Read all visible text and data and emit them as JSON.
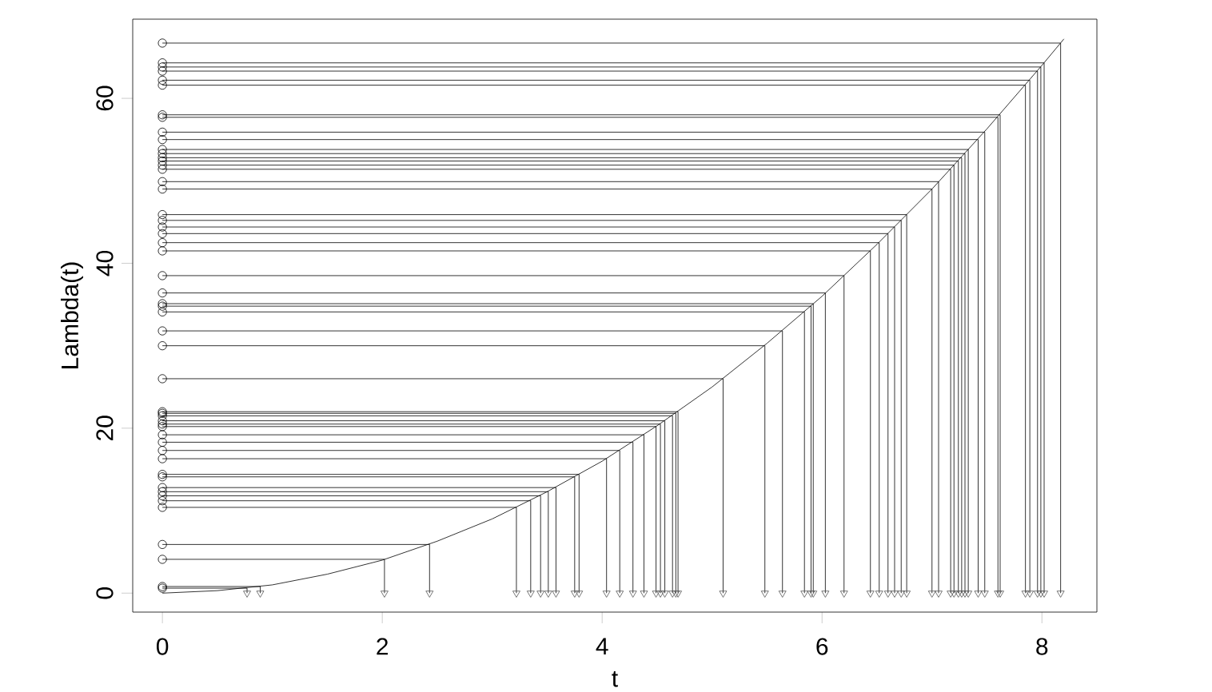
{
  "chart_data": {
    "type": "line",
    "xlabel": "t",
    "ylabel": "Lambda(t)",
    "xlim": [
      -0.27,
      8.5
    ],
    "ylim": [
      -2.3,
      69.6
    ],
    "xticks": [
      0,
      2,
      4,
      6,
      8
    ],
    "yticks": [
      0,
      20,
      40,
      60
    ],
    "grid": false,
    "series": [
      {
        "color": "#000000",
        "marker": "none",
        "line_style": "solid",
        "x": [
          0,
          0.5,
          1,
          1.5,
          2,
          2.5,
          3,
          3.5,
          4,
          4.5,
          5,
          5.5,
          6,
          6.5,
          7,
          7.5,
          8,
          8.2
        ],
        "values": [
          0,
          0.3,
          1,
          2.3,
          4,
          6.3,
          9,
          12.3,
          16,
          20.3,
          25,
          30.3,
          36,
          42.3,
          49,
          56.3,
          64,
          67.2
        ]
      },
      {
        "color": "#000000",
        "marker": "none",
        "line_style": "solid",
        "x": [
          0,
          8.17,
          8.17,
          null,
          0,
          8.02,
          8.02,
          null,
          0,
          7.99,
          7.99,
          null,
          0,
          7.96,
          7.96,
          null,
          0,
          7.89,
          7.89,
          null,
          0,
          7.85,
          7.85,
          null,
          0,
          7.62,
          7.62,
          null,
          0,
          7.6,
          7.6,
          null,
          0,
          7.48,
          7.48,
          null,
          0,
          7.42,
          7.42,
          null,
          0,
          7.33,
          7.33,
          null,
          0,
          7.3,
          7.3,
          null,
          0,
          7.27,
          7.27,
          null,
          0,
          7.24,
          7.24,
          null,
          0,
          7.2,
          7.2,
          null,
          0,
          7.17,
          7.17,
          null,
          0,
          7.06,
          7.06,
          null,
          0,
          7.0,
          7.0,
          null,
          0,
          6.77,
          6.77,
          null,
          0,
          6.72,
          6.72,
          null,
          0,
          6.66,
          6.66,
          null,
          0,
          6.6,
          6.6,
          null,
          0,
          6.52,
          6.52,
          null,
          0,
          6.44,
          6.44,
          null,
          0,
          6.2,
          6.2,
          null,
          0,
          6.03,
          6.03,
          null,
          0,
          5.92,
          5.92,
          null,
          0,
          5.9,
          5.9,
          null,
          0,
          5.84,
          5.84,
          null,
          0,
          5.64,
          5.64,
          null,
          0,
          5.48,
          5.48,
          null,
          0,
          5.1,
          5.1,
          null,
          0,
          4.69,
          4.69,
          null,
          0,
          4.67,
          4.67,
          null,
          0,
          4.64,
          4.64,
          null,
          0,
          4.57,
          4.57,
          null,
          0,
          4.53,
          4.53,
          null,
          0,
          4.49,
          4.49,
          null,
          0,
          4.38,
          4.38,
          null,
          0,
          4.28,
          4.28,
          null,
          0,
          4.16,
          4.16,
          null,
          0,
          4.04,
          4.04,
          null,
          0,
          3.79,
          3.79,
          null,
          0,
          3.75,
          3.75,
          null,
          0,
          3.58,
          3.58,
          null,
          0,
          3.51,
          3.51,
          null,
          0,
          3.44,
          3.44,
          null,
          0,
          3.35,
          3.35,
          null,
          0,
          3.22,
          3.22,
          null,
          0,
          2.43,
          2.43,
          null,
          0,
          2.02,
          2.02,
          null,
          0,
          0.89,
          0.89,
          null,
          0,
          0.77,
          0.77
        ],
        "values": [
          66.7,
          66.7,
          0,
          null,
          64.3,
          64.3,
          0,
          null,
          63.8,
          63.8,
          0,
          null,
          63.3,
          63.3,
          0,
          null,
          62.2,
          62.2,
          0,
          null,
          61.6,
          61.6,
          0,
          null,
          58.0,
          58.0,
          0,
          null,
          57.7,
          57.7,
          0,
          null,
          55.9,
          55.9,
          0,
          null,
          55.0,
          55.0,
          0,
          null,
          53.8,
          53.8,
          0,
          null,
          53.3,
          53.3,
          0,
          null,
          52.8,
          52.8,
          0,
          null,
          52.4,
          52.4,
          0,
          null,
          51.9,
          51.9,
          0,
          null,
          51.4,
          51.4,
          0,
          null,
          49.9,
          49.9,
          0,
          null,
          49.0,
          49.0,
          0,
          null,
          45.9,
          45.9,
          0,
          null,
          45.2,
          45.2,
          0,
          null,
          44.4,
          44.4,
          0,
          null,
          43.6,
          43.6,
          0,
          null,
          42.5,
          42.5,
          0,
          null,
          41.5,
          41.5,
          0,
          null,
          38.5,
          38.5,
          0,
          null,
          36.4,
          36.4,
          0,
          null,
          35.1,
          35.1,
          0,
          null,
          34.8,
          34.8,
          0,
          null,
          34.1,
          34.1,
          0,
          null,
          31.8,
          31.8,
          0,
          null,
          30.0,
          30.0,
          0,
          null,
          26.0,
          26.0,
          0,
          null,
          22.0,
          22.0,
          0,
          null,
          21.8,
          21.8,
          0,
          null,
          21.5,
          21.5,
          0,
          null,
          20.9,
          20.9,
          0,
          null,
          20.5,
          20.5,
          0,
          null,
          20.2,
          20.2,
          0,
          null,
          19.2,
          19.2,
          0,
          null,
          18.3,
          18.3,
          0,
          null,
          17.3,
          17.3,
          0,
          null,
          16.3,
          16.3,
          0,
          null,
          14.4,
          14.4,
          0,
          null,
          14.1,
          14.1,
          0,
          null,
          12.8,
          12.8,
          0,
          null,
          12.3,
          12.3,
          0,
          null,
          11.8,
          11.8,
          0,
          null,
          11.2,
          11.2,
          0,
          null,
          10.4,
          10.4,
          0,
          null,
          5.9,
          5.9,
          0,
          null,
          4.1,
          4.1,
          0,
          null,
          0.8,
          0.8,
          0,
          null,
          0.6,
          0.6,
          0
        ]
      },
      {
        "type": "scatter",
        "color": "#000000",
        "marker": "circle",
        "x": [
          0,
          0,
          0,
          0,
          0,
          0,
          0,
          0,
          0,
          0,
          0,
          0,
          0,
          0,
          0,
          0,
          0,
          0,
          0,
          0,
          0,
          0,
          0,
          0,
          0,
          0,
          0,
          0,
          0,
          0,
          0,
          0,
          0,
          0,
          0,
          0,
          0,
          0,
          0,
          0,
          0,
          0,
          0,
          0,
          0,
          0,
          0,
          0,
          0,
          0,
          0,
          0,
          0
        ],
        "values": [
          66.7,
          64.3,
          63.8,
          63.3,
          62.2,
          61.6,
          58.0,
          57.7,
          55.9,
          55.0,
          53.8,
          53.3,
          52.8,
          52.4,
          51.9,
          51.4,
          49.9,
          49.0,
          45.9,
          45.2,
          44.4,
          43.6,
          42.5,
          41.5,
          38.5,
          36.4,
          35.1,
          34.8,
          34.1,
          31.8,
          30.0,
          26.0,
          22.0,
          21.8,
          21.5,
          20.9,
          20.5,
          20.2,
          19.2,
          18.3,
          17.3,
          16.3,
          14.4,
          14.1,
          12.8,
          12.3,
          11.8,
          11.2,
          10.4,
          5.9,
          4.1,
          0.8,
          0.6
        ]
      },
      {
        "type": "scatter",
        "color": "#555555",
        "marker": "triangle",
        "x": [
          8.17,
          8.02,
          7.99,
          7.96,
          7.89,
          7.85,
          7.62,
          7.6,
          7.48,
          7.42,
          7.33,
          7.3,
          7.27,
          7.24,
          7.2,
          7.17,
          7.06,
          7.0,
          6.77,
          6.72,
          6.66,
          6.6,
          6.52,
          6.44,
          6.2,
          6.03,
          5.92,
          5.9,
          5.84,
          5.64,
          5.48,
          5.1,
          4.69,
          4.67,
          4.64,
          4.57,
          4.53,
          4.49,
          4.38,
          4.28,
          4.16,
          4.04,
          3.79,
          3.75,
          3.58,
          3.51,
          3.44,
          3.35,
          3.22,
          2.43,
          2.02,
          0.89,
          0.77
        ],
        "values": [
          0,
          0,
          0,
          0,
          0,
          0,
          0,
          0,
          0,
          0,
          0,
          0,
          0,
          0,
          0,
          0,
          0,
          0,
          0,
          0,
          0,
          0,
          0,
          0,
          0,
          0,
          0,
          0,
          0,
          0,
          0,
          0,
          0,
          0,
          0,
          0,
          0,
          0,
          0,
          0,
          0,
          0,
          0,
          0,
          0,
          0,
          0,
          0,
          0,
          0,
          0,
          0,
          0
        ]
      }
    ]
  }
}
